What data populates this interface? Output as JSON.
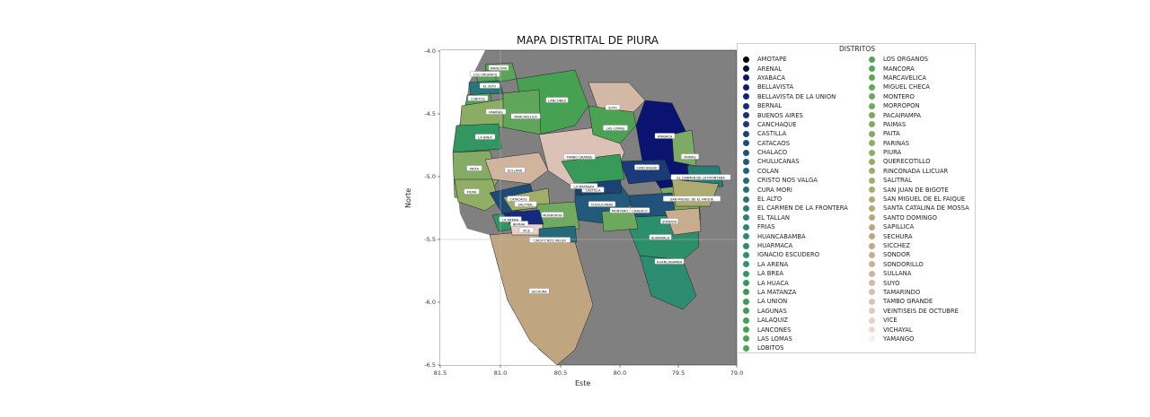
{
  "map": {
    "title": "MAPA DISTRITAL DE PIURA",
    "xlabel": "Este",
    "ylabel": "Norte",
    "x_ticks": [
      "81.5",
      "81.0",
      "80.5",
      "80.0",
      "79.5",
      "79.0"
    ],
    "y_ticks": [
      "-4.0",
      "-4.5",
      "-5.0",
      "-5.5",
      "-6.0",
      "-6.5"
    ],
    "background_color": "#808080",
    "grid": true
  },
  "legend": {
    "title": "DISTRITOS",
    "placement": "right",
    "items": [
      {
        "name": "AMOTAPE",
        "color": "#000000"
      },
      {
        "name": "ARENAL",
        "color": "#050a3a"
      },
      {
        "name": "AYABACA",
        "color": "#0a1470"
      },
      {
        "name": "BELLAVISTA",
        "color": "#0d1a7a"
      },
      {
        "name": "BELLAVISTA DE LA UNION",
        "color": "#102080"
      },
      {
        "name": "BERNAL",
        "color": "#142a80"
      },
      {
        "name": "BUENOS AIRES",
        "color": "#18337a"
      },
      {
        "name": "CANCHAQUE",
        "color": "#1a3a78"
      },
      {
        "name": "CASTILLA",
        "color": "#1c4275"
      },
      {
        "name": "CATACAOS",
        "color": "#1e4a78"
      },
      {
        "name": "CHALACO",
        "color": "#20527a"
      },
      {
        "name": "CHULUCANAS",
        "color": "#215a7a"
      },
      {
        "name": "COLAN",
        "color": "#23627a"
      },
      {
        "name": "CRISTO NOS VALGA",
        "color": "#246a7a"
      },
      {
        "name": "CURA MORI",
        "color": "#25707a"
      },
      {
        "name": "EL ALTO",
        "color": "#26767a"
      },
      {
        "name": "EL CARMEN DE LA FRONTERA",
        "color": "#277c78"
      },
      {
        "name": "EL TALLAN",
        "color": "#288276"
      },
      {
        "name": "FRIAS",
        "color": "#2a8773"
      },
      {
        "name": "HUANCABAMBA",
        "color": "#2b8c70"
      },
      {
        "name": "HUARMACA",
        "color": "#2c8f6c"
      },
      {
        "name": "IGNACIO ESCUDERO",
        "color": "#2e9268"
      },
      {
        "name": "LA ARENA",
        "color": "#309464"
      },
      {
        "name": "LA BREA",
        "color": "#329660"
      },
      {
        "name": "LA HUACA",
        "color": "#34985c"
      },
      {
        "name": "LA MATANZA",
        "color": "#379a58"
      },
      {
        "name": "LA UNION",
        "color": "#3a9c56"
      },
      {
        "name": "LAGUNAS",
        "color": "#3e9e54"
      },
      {
        "name": "LALAQUIZ",
        "color": "#42a052"
      },
      {
        "name": "LANCONES",
        "color": "#46a152"
      },
      {
        "name": "LAS LOMAS",
        "color": "#4aa252"
      },
      {
        "name": "LOBITOS",
        "color": "#4fa354"
      },
      {
        "name": "LOS ORGANOS",
        "color": "#55a456"
      },
      {
        "name": "MANCORA",
        "color": "#5aa558"
      },
      {
        "name": "MARCAVELICA",
        "color": "#60a65a"
      },
      {
        "name": "MIGUEL CHECA",
        "color": "#66a75c"
      },
      {
        "name": "MONTERO",
        "color": "#6ca85e"
      },
      {
        "name": "MORROPON",
        "color": "#72a960"
      },
      {
        "name": "PACAIPAMPA",
        "color": "#78aa62"
      },
      {
        "name": "PAIMAS",
        "color": "#7eab63"
      },
      {
        "name": "PAITA",
        "color": "#84ac64"
      },
      {
        "name": "PARINAS",
        "color": "#8aac65"
      },
      {
        "name": "PIURA",
        "color": "#90ad66"
      },
      {
        "name": "QUERECOTILLO",
        "color": "#96ad67"
      },
      {
        "name": "RINCONADA LLICUAR",
        "color": "#9cad68"
      },
      {
        "name": "SALITRAL",
        "color": "#a2ad6a"
      },
      {
        "name": "SAN JUAN DE BIGOTE",
        "color": "#a8ac6c"
      },
      {
        "name": "SAN MIGUEL DE EL FAIQUE",
        "color": "#aeab70"
      },
      {
        "name": "SANTA CATALINA DE MOSSA",
        "color": "#b3aa74"
      },
      {
        "name": "SANTO DOMINGO",
        "color": "#b8a878"
      },
      {
        "name": "SAPILLICA",
        "color": "#bca77c"
      },
      {
        "name": "SECHURA",
        "color": "#c0a680"
      },
      {
        "name": "SICCHEZ",
        "color": "#c4a886"
      },
      {
        "name": "SONDOR",
        "color": "#c8ac8e"
      },
      {
        "name": "SONDORILLO",
        "color": "#ccb096"
      },
      {
        "name": "SULLANA",
        "color": "#d0b49e"
      },
      {
        "name": "SUYO",
        "color": "#d4b8a6"
      },
      {
        "name": "TAMARINDO",
        "color": "#d8bdae"
      },
      {
        "name": "TAMBO GRANDE",
        "color": "#dcc2b6"
      },
      {
        "name": "VEINTISEIS DE OCTUBRE",
        "color": "#e0c8c0"
      },
      {
        "name": "VICE",
        "color": "#e6d0cc"
      },
      {
        "name": "VICHAYAL",
        "color": "#eed9d8"
      },
      {
        "name": "YAMANGO",
        "color": "#f8eeee"
      }
    ]
  },
  "districts": [
    {
      "name": "MANCORA",
      "label": "MANCORA",
      "color": "#5aa558"
    },
    {
      "name": "LOS ORGANOS",
      "label": "LOS ORGANOS",
      "color": "#55a456"
    },
    {
      "name": "EL ALTO",
      "label": "EL ALTO",
      "color": "#26767a"
    },
    {
      "name": "LOBITOS",
      "label": "LOBITOS",
      "color": "#4fa354"
    },
    {
      "name": "PARINAS",
      "label": "PARIÑAS",
      "color": "#8aac65"
    },
    {
      "name": "LA BREA",
      "label": "LA BREA",
      "color": "#329660"
    },
    {
      "name": "LANCONES",
      "label": "LANCONES",
      "color": "#46a152"
    },
    {
      "name": "MARCAVELICA",
      "label": "MARCAVELICA",
      "color": "#60a65a"
    },
    {
      "name": "SUYO",
      "label": "SUYO",
      "color": "#d4b8a6"
    },
    {
      "name": "AYABACA",
      "label": "AYABACA",
      "color": "#0a1470"
    },
    {
      "name": "PAITA",
      "label": "PAITA",
      "color": "#84ac64"
    },
    {
      "name": "TAMBO GRANDE",
      "label": "TAMBO GRANDE",
      "color": "#dcc2b6"
    },
    {
      "name": "LAS LOMAS",
      "label": "LAS LOMAS",
      "color": "#4aa252"
    },
    {
      "name": "SULLANA",
      "label": "SULLANA",
      "color": "#d0b49e"
    },
    {
      "name": "PIURA",
      "label": "PIURA",
      "color": "#90ad66"
    },
    {
      "name": "CHULUCANAS",
      "label": "CHULUCANAS",
      "color": "#215a7a"
    },
    {
      "name": "CATACAOS",
      "label": "CATACAOS",
      "color": "#1e4a78"
    },
    {
      "name": "LA ARENA",
      "label": "LA ARENA",
      "color": "#309464"
    },
    {
      "name": "SALITRAL",
      "label": "SALITRAL",
      "color": "#a2ad6a"
    },
    {
      "name": "HUARMACA",
      "label": "HUARMACA",
      "color": "#2c8f6c"
    },
    {
      "name": "SECHURA",
      "label": "SECHURA",
      "color": "#c0a680"
    },
    {
      "name": "HUANCABAMBA",
      "label": "HUANCABAMBA",
      "color": "#2b8c70"
    },
    {
      "name": "PACAIPAMPA",
      "label": "PACAIPAMPA",
      "color": "#78aa62"
    },
    {
      "name": "MORROPON",
      "label": "MORROPON",
      "color": "#72a960"
    },
    {
      "name": "CANCHAQUE",
      "label": "CANCHAQUE",
      "color": "#1a3a78"
    },
    {
      "name": "BERNAL",
      "label": "BERNAL",
      "color": "#142a80"
    },
    {
      "name": "VICE",
      "label": "VICE",
      "color": "#e6d0cc"
    },
    {
      "name": "CRISTO NOS VALGA",
      "label": "CRISTO NOS VALGA",
      "color": "#246a7a"
    },
    {
      "name": "EL CARMEN DE LA FRONTERA",
      "label": "EL CARMEN DE LA FRONTERA",
      "color": "#277c78"
    },
    {
      "name": "PAIMAS",
      "label": "PAIMAS",
      "color": "#7eab63"
    },
    {
      "name": "CASTILLA",
      "label": "CASTILLA",
      "color": "#1c4275"
    },
    {
      "name": "SAN MIGUEL DE EL FAIQUE",
      "label": "SAN MIGUEL DE EL FAIQUE",
      "color": "#aeab70"
    },
    {
      "name": "CHALACO",
      "label": "CHALACO",
      "color": "#20527a"
    },
    {
      "name": "LA MATANZA",
      "label": "LA MATANZA",
      "color": "#379a58"
    },
    {
      "name": "MONTERO",
      "label": "MONTERO",
      "color": "#6ca85e"
    },
    {
      "name": "SONDOR",
      "label": "SONDOR",
      "color": "#c8ac8e"
    }
  ]
}
